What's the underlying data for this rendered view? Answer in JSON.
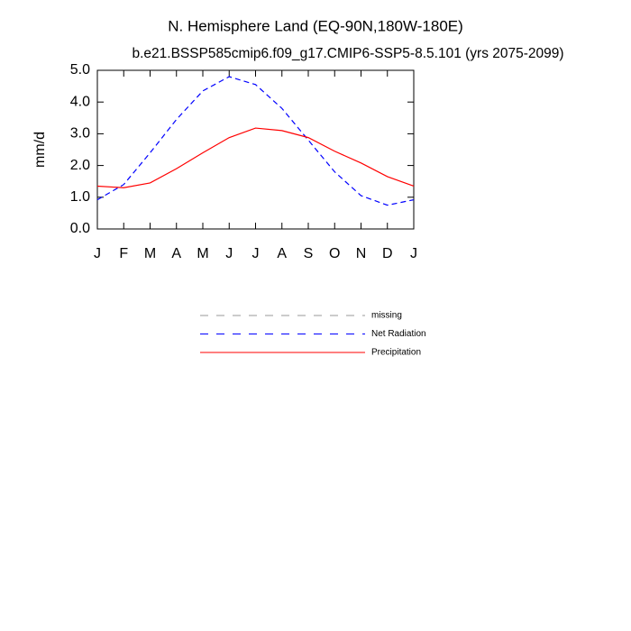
{
  "chart_data": {
    "type": "line",
    "title": "N. Hemisphere Land (EQ-90N,180W-180E)",
    "subtitle": "b.e21.BSSP585cmip6.f09_g17.CMIP6-SSP5-8.5.101 (yrs 2075-2099)",
    "ylabel": "mm/d",
    "categories": [
      "J",
      "F",
      "M",
      "A",
      "M",
      "J",
      "J",
      "A",
      "S",
      "O",
      "N",
      "D",
      "J"
    ],
    "ylim": [
      0,
      5
    ],
    "yticks": [
      {
        "value": 0,
        "label": "0.0"
      },
      {
        "value": 1,
        "label": "1.0"
      },
      {
        "value": 2,
        "label": "2.0"
      },
      {
        "value": 3,
        "label": "3.0"
      },
      {
        "value": 4,
        "label": "4.0"
      },
      {
        "value": 5,
        "label": "5.0"
      }
    ],
    "series": [
      {
        "name": "missing",
        "color": "#999999",
        "dash": true,
        "values": [
          null,
          null,
          null,
          null,
          null,
          null,
          null,
          null,
          null,
          null,
          null,
          null,
          null
        ]
      },
      {
        "name": "Net Radiation",
        "color": "#0000ff",
        "dash": true,
        "values": [
          0.92,
          1.4,
          2.4,
          3.45,
          4.35,
          4.8,
          4.55,
          3.8,
          2.8,
          1.8,
          1.05,
          0.75,
          0.92
        ]
      },
      {
        "name": "Precipitation",
        "color": "#ff0000",
        "dash": false,
        "values": [
          1.35,
          1.3,
          1.45,
          1.9,
          2.4,
          2.88,
          3.18,
          3.1,
          2.88,
          2.45,
          2.08,
          1.65,
          1.35
        ]
      }
    ]
  }
}
